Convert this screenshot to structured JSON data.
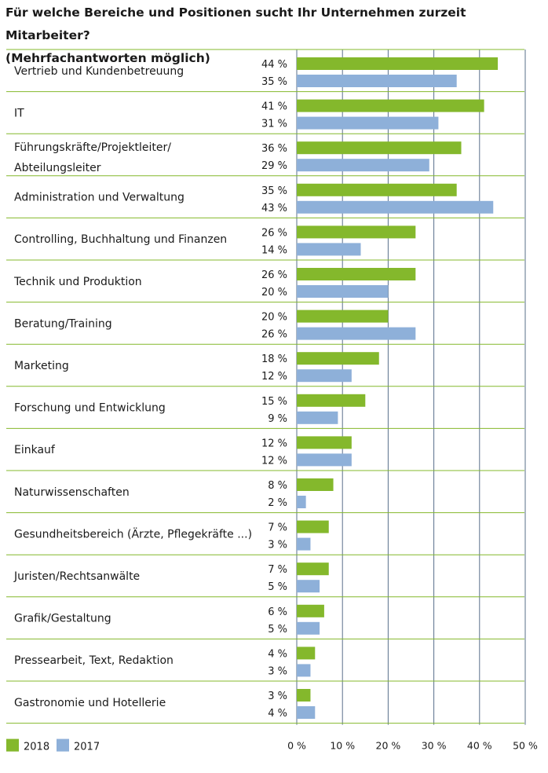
{
  "title_line1": "Für welche Bereiche und Positionen sucht Ihr Unternehmen zurzeit Mitarbeiter?",
  "title_line2": "(Mehrfachantworten möglich)",
  "colors": {
    "s2018": "#84b82c",
    "s2017": "#8eb0d9",
    "rule": "#84b82c",
    "grid": "#5a6f8a"
  },
  "chart_data": {
    "type": "bar",
    "orientation": "horizontal",
    "title": "Für welche Bereiche und Positionen sucht Ihr Unternehmen zurzeit Mitarbeiter? (Mehrfachantworten möglich)",
    "categories": [
      [
        "Vertrieb und Kundenbetreuung"
      ],
      [
        "IT"
      ],
      [
        "Führungskräfte/Projektleiter/",
        "Abteilungsleiter"
      ],
      [
        "Administration und Verwaltung"
      ],
      [
        "Controlling, Buchhaltung und Finanzen"
      ],
      [
        "Technik und Produktion"
      ],
      [
        "Beratung/Training"
      ],
      [
        "Marketing"
      ],
      [
        "Forschung und Entwicklung"
      ],
      [
        "Einkauf"
      ],
      [
        "Naturwissenschaften"
      ],
      [
        "Gesundheitsbereich (Ärzte, Pflegekräfte ...)"
      ],
      [
        "Juristen/Rechtsanwälte"
      ],
      [
        "Grafik/Gestaltung"
      ],
      [
        "Pressearbeit, Text, Redaktion"
      ],
      [
        "Gastronomie und Hotellerie"
      ]
    ],
    "series": [
      {
        "name": "2018",
        "values": [
          44,
          41,
          36,
          35,
          26,
          26,
          20,
          18,
          15,
          12,
          8,
          7,
          7,
          6,
          4,
          3
        ],
        "labels": [
          "44 %",
          "41 %",
          "36 %",
          "35 %",
          "26 %",
          "26 %",
          "20 %",
          "18 %",
          "15 %",
          "12 %",
          "8 %",
          "7 %",
          "7 %",
          "6 %",
          "4 %",
          "3 %"
        ]
      },
      {
        "name": "2017",
        "values": [
          35,
          31,
          29,
          43,
          14,
          20,
          26,
          12,
          9,
          12,
          2,
          3,
          5,
          5,
          3,
          4
        ],
        "labels": [
          "35 %",
          "31 %",
          "29 %",
          "43 %",
          "14 %",
          "20 %",
          "26 %",
          "12 %",
          "9 %",
          "12 %",
          "2 %",
          "3 %",
          "5 %",
          "5 %",
          "3 %",
          "4 %"
        ]
      }
    ],
    "xlim": [
      0,
      50
    ],
    "xticks": [
      "0 %",
      "10 %",
      "20 %",
      "30 %",
      "40 %",
      "50 %"
    ],
    "unit": "%",
    "grid": true,
    "legend": "bottom-left"
  }
}
